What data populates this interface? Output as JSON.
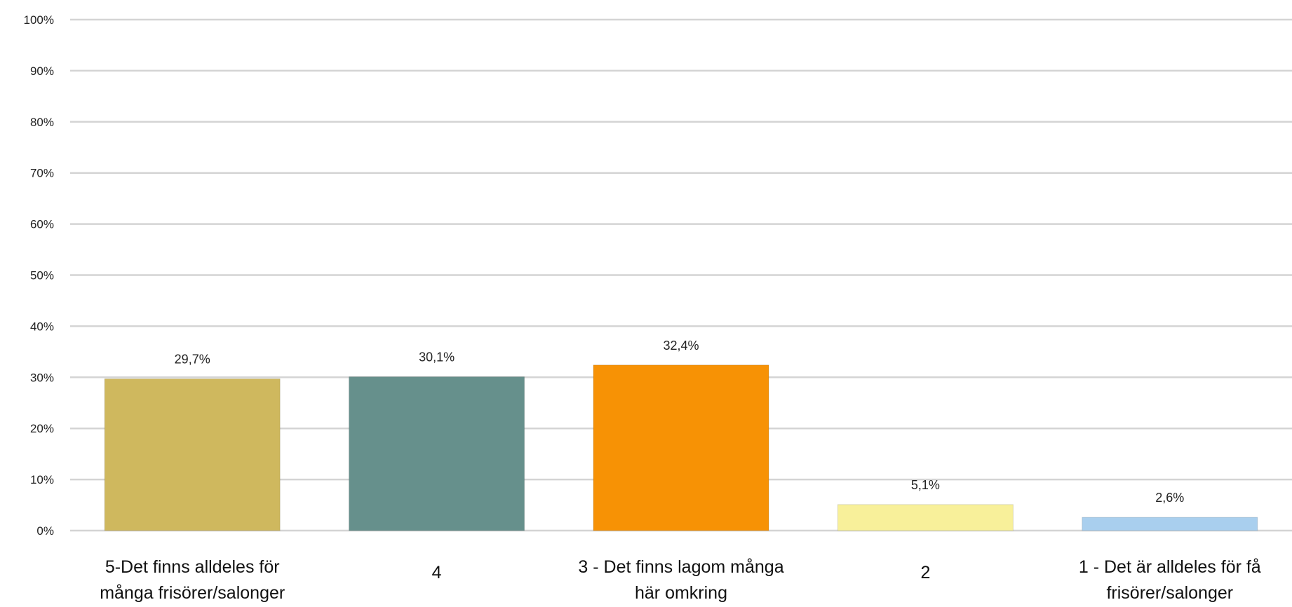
{
  "chart_data": {
    "type": "bar",
    "categories": [
      [
        "5-Det finns alldeles för",
        "många frisörer/salonger"
      ],
      [
        "4"
      ],
      [
        "3 - Det finns lagom många",
        "här omkring"
      ],
      [
        "2"
      ],
      [
        "1 - Det är alldeles för få",
        "frisörer/salonger"
      ]
    ],
    "values": [
      29.7,
      30.1,
      32.4,
      5.1,
      2.6
    ],
    "data_labels": [
      "29,7%",
      "30,1%",
      "32,4%",
      "5,1%",
      "2,6%"
    ],
    "colors": [
      "#CFB85E",
      "#66908C",
      "#F79205",
      "#F8F09A",
      "#A9CFEE"
    ],
    "ylim": [
      0,
      100
    ],
    "yticks": [
      0,
      10,
      20,
      30,
      40,
      50,
      60,
      70,
      80,
      90,
      100
    ],
    "ytick_labels": [
      "0%",
      "10%",
      "20%",
      "30%",
      "40%",
      "50%",
      "60%",
      "70%",
      "80%",
      "90%",
      "100%"
    ],
    "grid": true,
    "legend": "none"
  }
}
